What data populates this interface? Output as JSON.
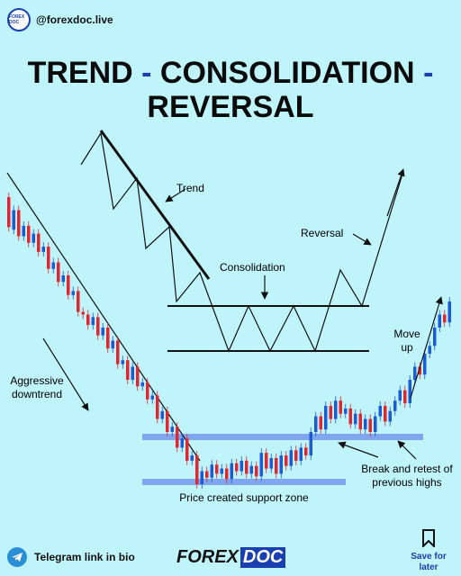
{
  "header": {
    "logo_text": "FOREX DOC",
    "handle": "@forexdoc.live"
  },
  "title": {
    "part1": "TREND",
    "dash1": "-",
    "part2": "CONSOLIDATION",
    "dash2": "-",
    "part3": "REVERSAL"
  },
  "labels": {
    "trend": "Trend",
    "consolidation": "Consolidation",
    "reversal": "Reversal",
    "aggressive": "Aggressive downtrend",
    "move_up": "Move up",
    "break_retest": "Break and retest of previous highs",
    "support": "Price created support zone"
  },
  "footer": {
    "telegram": "Telegram link in bio",
    "brand_a": "FOREX",
    "brand_b": "DOC",
    "save": "Save for later"
  },
  "colors": {
    "bull": "#1c5bd6",
    "bear": "#e0262e",
    "zone": "#7fa6ee",
    "accent": "#1a3fb0"
  },
  "chart_data": {
    "type": "candlestick",
    "candles": [
      [
        20,
        43
      ],
      [
        45,
        30
      ],
      [
        30,
        50
      ],
      [
        50,
        42
      ],
      [
        42,
        55
      ],
      [
        55,
        48
      ],
      [
        48,
        62
      ],
      [
        62,
        58
      ],
      [
        58,
        75
      ],
      [
        75,
        70
      ],
      [
        70,
        85
      ],
      [
        85,
        80
      ],
      [
        80,
        95
      ],
      [
        95,
        92
      ],
      [
        92,
        108
      ],
      [
        108,
        110
      ],
      [
        110,
        118
      ],
      [
        118,
        112
      ],
      [
        112,
        126
      ],
      [
        126,
        120
      ],
      [
        120,
        136
      ],
      [
        136,
        130
      ],
      [
        130,
        148
      ],
      [
        148,
        145
      ],
      [
        145,
        160
      ],
      [
        160,
        150
      ],
      [
        150,
        165
      ],
      [
        165,
        162
      ],
      [
        162,
        175
      ],
      [
        175,
        172
      ],
      [
        172,
        190
      ],
      [
        190,
        184
      ],
      [
        184,
        200
      ],
      [
        200,
        196
      ],
      [
        196,
        212
      ],
      [
        212,
        205
      ],
      [
        205,
        222
      ],
      [
        222,
        218
      ],
      [
        218,
        240
      ],
      [
        240,
        230
      ],
      [
        230,
        235
      ],
      [
        235,
        225
      ],
      [
        225,
        232
      ],
      [
        232,
        228
      ],
      [
        228,
        236
      ],
      [
        236,
        224
      ],
      [
        224,
        230
      ],
      [
        230,
        222
      ],
      [
        222,
        232
      ],
      [
        232,
        226
      ],
      [
        226,
        234
      ],
      [
        234,
        216
      ],
      [
        216,
        228
      ],
      [
        228,
        220
      ],
      [
        220,
        232
      ],
      [
        232,
        218
      ],
      [
        218,
        226
      ],
      [
        226,
        214
      ],
      [
        214,
        222
      ],
      [
        222,
        212
      ],
      [
        212,
        218
      ],
      [
        218,
        200
      ],
      [
        200,
        188
      ],
      [
        188,
        198
      ],
      [
        198,
        180
      ],
      [
        180,
        190
      ],
      [
        190,
        176
      ],
      [
        176,
        186
      ],
      [
        186,
        182
      ],
      [
        182,
        194
      ],
      [
        194,
        186
      ],
      [
        186,
        198
      ],
      [
        198,
        190
      ],
      [
        190,
        200
      ],
      [
        200,
        188
      ],
      [
        188,
        180
      ],
      [
        180,
        192
      ],
      [
        192,
        184
      ],
      [
        184,
        176
      ],
      [
        176,
        168
      ],
      [
        168,
        178
      ],
      [
        178,
        160
      ],
      [
        160,
        150
      ],
      [
        150,
        156
      ],
      [
        156,
        140
      ],
      [
        140,
        134
      ],
      [
        134,
        120
      ],
      [
        120,
        110
      ],
      [
        110,
        116
      ],
      [
        116,
        100
      ]
    ]
  }
}
